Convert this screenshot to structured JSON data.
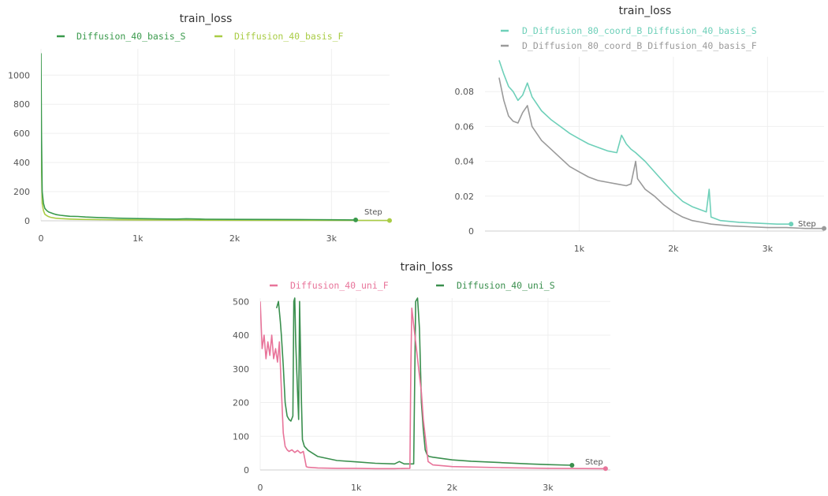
{
  "chart_data": [
    {
      "type": "line",
      "title": "train_loss",
      "xlabel": "Step",
      "ylabel": "",
      "xlim": [
        0,
        3600
      ],
      "ylim": [
        0,
        1180
      ],
      "x_ticks": [
        0,
        1000,
        2000,
        3000
      ],
      "x_tick_labels": [
        "0",
        "1k",
        "2k",
        "3k"
      ],
      "y_ticks": [
        0,
        200,
        400,
        600,
        800,
        1000
      ],
      "y_tick_labels": [
        "0",
        "200",
        "400",
        "600",
        "800",
        "1000"
      ],
      "grid": true,
      "legend": "top",
      "series": [
        {
          "name": "Diffusion_40_basis_S",
          "color": "#3a9a4c",
          "x": [
            0,
            5,
            12,
            25,
            40,
            60,
            80,
            100,
            130,
            160,
            200,
            250,
            300,
            380,
            460,
            600,
            800,
            1000,
            1200,
            1400,
            1500,
            1700,
            2000,
            2400,
            2800,
            3000,
            3250
          ],
          "y": [
            1150,
            600,
            200,
            120,
            85,
            70,
            60,
            55,
            48,
            42,
            38,
            34,
            31,
            30,
            26,
            22,
            18,
            15,
            13,
            12,
            14,
            11,
            10,
            9,
            8,
            7,
            6
          ]
        },
        {
          "name": "Diffusion_40_basis_F",
          "color": "#a9cc45",
          "x": [
            0,
            5,
            12,
            25,
            40,
            60,
            80,
            100,
            150,
            200,
            300,
            400,
            600,
            800,
            1000,
            1500,
            2000,
            2500,
            3000,
            3600
          ],
          "y": [
            900,
            400,
            120,
            70,
            45,
            35,
            28,
            24,
            18,
            15,
            12,
            10,
            8,
            7,
            6,
            5,
            4,
            3,
            3,
            2
          ]
        }
      ]
    },
    {
      "type": "line",
      "title": "train_loss",
      "xlabel": "Step",
      "ylabel": "",
      "xlim": [
        0,
        3600
      ],
      "ylim": [
        0,
        0.1
      ],
      "x_ticks": [
        1000,
        2000,
        3000
      ],
      "x_tick_labels": [
        "1k",
        "2k",
        "3k"
      ],
      "y_ticks": [
        0,
        0.02,
        0.04,
        0.06,
        0.08
      ],
      "y_tick_labels": [
        "0",
        "0.02",
        "0.04",
        "0.06",
        "0.08"
      ],
      "grid": true,
      "legend": "top",
      "series": [
        {
          "name": "D_Diffusion_80_coord_B_Diffusion_40_basis_S",
          "color": "#6ed0b9",
          "x": [
            150,
            200,
            250,
            300,
            350,
            400,
            450,
            500,
            600,
            700,
            800,
            900,
            1000,
            1100,
            1200,
            1300,
            1400,
            1450,
            1500,
            1550,
            1600,
            1700,
            1800,
            1900,
            2000,
            2100,
            2200,
            2300,
            2350,
            2380,
            2400,
            2500,
            2700,
            2900,
            3100,
            3250
          ],
          "y": [
            0.098,
            0.09,
            0.083,
            0.08,
            0.075,
            0.078,
            0.085,
            0.077,
            0.069,
            0.064,
            0.06,
            0.056,
            0.053,
            0.05,
            0.048,
            0.046,
            0.045,
            0.055,
            0.05,
            0.047,
            0.045,
            0.04,
            0.034,
            0.028,
            0.022,
            0.017,
            0.014,
            0.012,
            0.011,
            0.024,
            0.008,
            0.006,
            0.005,
            0.0045,
            0.004,
            0.004
          ]
        },
        {
          "name": "D_Diffusion_80_coord_B_Diffusion_40_basis_F",
          "color": "#9a9a9a",
          "x": [
            150,
            200,
            250,
            300,
            350,
            400,
            450,
            500,
            600,
            700,
            800,
            900,
            1000,
            1100,
            1200,
            1300,
            1400,
            1500,
            1550,
            1600,
            1620,
            1700,
            1800,
            1900,
            2000,
            2100,
            2200,
            2300,
            2400,
            2500,
            2600,
            2800,
            3000,
            3200,
            3400,
            3600
          ],
          "y": [
            0.088,
            0.075,
            0.066,
            0.063,
            0.062,
            0.068,
            0.072,
            0.06,
            0.052,
            0.047,
            0.042,
            0.037,
            0.034,
            0.031,
            0.029,
            0.028,
            0.027,
            0.026,
            0.027,
            0.04,
            0.03,
            0.024,
            0.02,
            0.015,
            0.011,
            0.008,
            0.006,
            0.005,
            0.004,
            0.0035,
            0.003,
            0.0025,
            0.002,
            0.002,
            0.0015,
            0.0015
          ]
        }
      ]
    },
    {
      "type": "line",
      "title": "train_loss",
      "xlabel": "Step",
      "ylabel": "",
      "xlim": [
        0,
        3650
      ],
      "ylim": [
        0,
        510
      ],
      "x_ticks": [
        0,
        1000,
        2000,
        3000
      ],
      "x_tick_labels": [
        "0",
        "1k",
        "2k",
        "3k"
      ],
      "y_ticks": [
        0,
        100,
        200,
        300,
        400,
        500
      ],
      "y_tick_labels": [
        "0",
        "100",
        "200",
        "300",
        "400",
        "500"
      ],
      "grid": true,
      "legend": "top",
      "series": [
        {
          "name": "Diffusion_40_uni_F",
          "color": "#e8749a",
          "x": [
            0,
            20,
            40,
            60,
            80,
            100,
            120,
            140,
            160,
            180,
            200,
            220,
            240,
            260,
            280,
            300,
            330,
            360,
            390,
            420,
            450,
            480,
            500,
            600,
            800,
            1000,
            1200,
            1400,
            1560,
            1570,
            1580,
            1600,
            1620,
            1640,
            1660,
            1680,
            1700,
            1750,
            1800,
            2000,
            2500,
            3000,
            3600
          ],
          "y": [
            500,
            360,
            400,
            330,
            380,
            340,
            400,
            330,
            360,
            320,
            380,
            240,
            110,
            70,
            60,
            55,
            60,
            52,
            58,
            50,
            55,
            10,
            8,
            6,
            5,
            5,
            4,
            4,
            5,
            300,
            480,
            430,
            380,
            330,
            280,
            230,
            150,
            25,
            15,
            10,
            7,
            5,
            4
          ]
        },
        {
          "name": "Diffusion_40_uni_S",
          "color": "#3a8f4e",
          "x": [
            170,
            190,
            200,
            210,
            220,
            240,
            260,
            280,
            300,
            320,
            340,
            350,
            360,
            370,
            380,
            400,
            410,
            420,
            430,
            440,
            460,
            500,
            600,
            800,
            1000,
            1200,
            1400,
            1450,
            1500,
            1600,
            1620,
            1640,
            1660,
            1680,
            1700,
            1720,
            1740,
            1760,
            1800,
            2000,
            2200,
            2500,
            2800,
            3000,
            3250
          ],
          "y": [
            480,
            500,
            470,
            440,
            400,
            310,
            200,
            160,
            150,
            145,
            160,
            500,
            510,
            380,
            300,
            150,
            500,
            350,
            200,
            90,
            70,
            58,
            40,
            28,
            24,
            20,
            18,
            25,
            18,
            18,
            500,
            510,
            420,
            200,
            120,
            60,
            45,
            40,
            38,
            30,
            26,
            22,
            18,
            16,
            14
          ]
        }
      ]
    }
  ]
}
